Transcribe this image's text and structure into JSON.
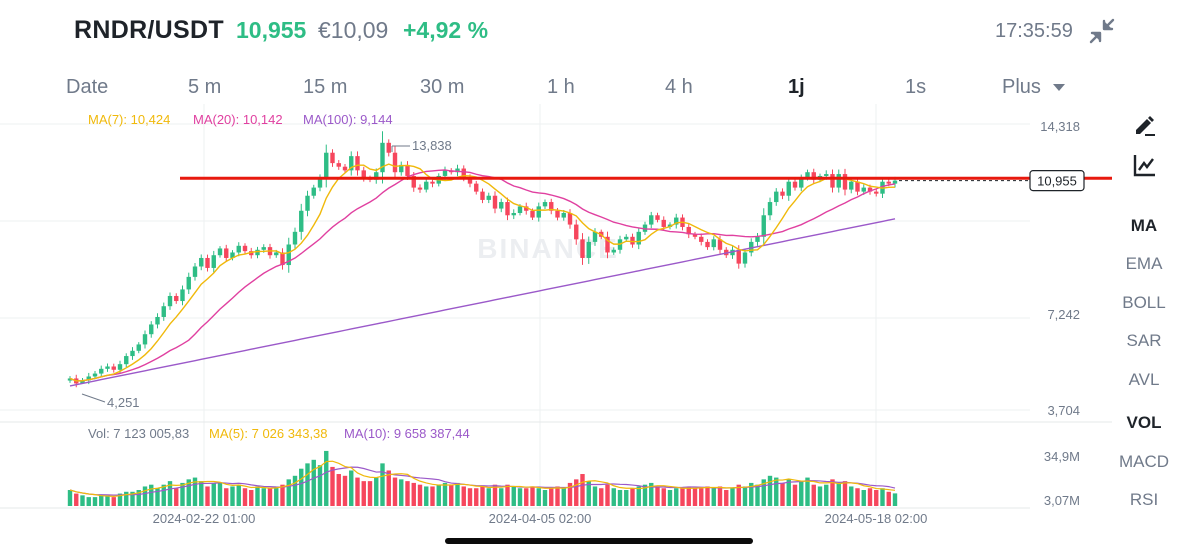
{
  "header": {
    "pair": "RNDR/USDT",
    "price": "10,955",
    "fiat_price": "€10,09",
    "change": "+4,92 %",
    "time": "17:35:59",
    "collapse_icon": "collapse-arrows-icon"
  },
  "timeframes": [
    {
      "label": "Date",
      "active": false
    },
    {
      "label": "5 m",
      "active": false
    },
    {
      "label": "15 m",
      "active": false
    },
    {
      "label": "30 m",
      "active": false
    },
    {
      "label": "1 h",
      "active": false
    },
    {
      "label": "4 h",
      "active": false
    },
    {
      "label": "1j",
      "active": true
    },
    {
      "label": "1s",
      "active": false
    },
    {
      "label": "Plus",
      "active": false
    }
  ],
  "indicators_main": [
    "MA",
    "EMA",
    "BOLL",
    "SAR",
    "AVL"
  ],
  "indicators_sub": [
    "VOL",
    "MACD",
    "RSI"
  ],
  "active_main": "MA",
  "active_sub": "VOL",
  "tools": [
    "draw-tool-icon",
    "chart-style-icon"
  ],
  "colors": {
    "up": "#2ebd85",
    "down": "#f6465d",
    "ma7": "#f0b90b",
    "ma20": "#e040a0",
    "ma100": "#9b59c9",
    "level": "#e8190e",
    "text": "#707a8a",
    "grid": "#eef0f2"
  },
  "chart_data": {
    "type": "candlestick",
    "symbol": "RNDR/USDT",
    "interval": "1j",
    "legend": {
      "ma7": "MA(7): 10,424",
      "ma20": "MA(20): 10,142",
      "ma100": "MA(100): 9,144"
    },
    "price_axis": [
      "14,318",
      "7,242",
      "3,704"
    ],
    "current_price_label": "10,955",
    "current_price": 10.955,
    "high_label": "13,838",
    "low_label": "4,251",
    "resistance_level": 11.08,
    "x_labels": [
      "2024-02-22 01:00",
      "2024-04-05 02:00",
      "2024-05-18 02:00"
    ],
    "volume_legend": {
      "vol": "Vol: 7 123 005,83",
      "ma5": "MA(5): 7 026 343,38",
      "ma10": "MA(10): 9 658 387,44"
    },
    "volume_axis": [
      "34,9M",
      "3,07M"
    ],
    "close": [
      4.3,
      4.2,
      4.26,
      4.34,
      4.4,
      4.5,
      4.55,
      4.48,
      4.6,
      4.78,
      4.9,
      5.05,
      5.3,
      5.55,
      5.75,
      6.05,
      6.35,
      6.2,
      6.55,
      6.95,
      7.3,
      7.6,
      7.25,
      7.7,
      7.95,
      7.6,
      7.8,
      8.05,
      7.85,
      7.7,
      7.9,
      8.0,
      7.7,
      7.8,
      7.35,
      8.1,
      8.6,
      9.5,
      10.2,
      10.6,
      11.1,
      12.5,
      11.9,
      11.7,
      11.5,
      12.3,
      11.5,
      11.1,
      11.0,
      11.4,
      13.1,
      12.5,
      11.4,
      11.8,
      11.2,
      10.6,
      10.5,
      10.9,
      10.8,
      11.2,
      11.5,
      11.4,
      11.6,
      11.1,
      10.8,
      10.4,
      10.0,
      10.2,
      9.6,
      9.9,
      9.3,
      9.4,
      9.7,
      9.5,
      9.2,
      9.7,
      9.9,
      9.5,
      9.2,
      9.4,
      8.9,
      8.3,
      7.6,
      8.2,
      8.6,
      8.4,
      7.8,
      7.9,
      8.3,
      8.4,
      8.1,
      8.6,
      8.9,
      9.3,
      9.1,
      8.8,
      8.9,
      9.2,
      8.8,
      8.5,
      8.4,
      8.2,
      8.0,
      8.3,
      7.9,
      7.7,
      7.9,
      7.4,
      7.8,
      8.2,
      8.4,
      9.3,
      9.9,
      10.4,
      10.2,
      10.9,
      10.6,
      11.1,
      11.4,
      11.0,
      11.2,
      11.3,
      10.6,
      11.3,
      10.5,
      10.9,
      10.4,
      10.6,
      10.4,
      10.3,
      10.9,
      10.8,
      10.955
    ],
    "volume_millions": [
      9,
      7,
      6,
      5,
      5,
      6,
      6,
      5,
      7,
      8,
      8,
      9,
      11,
      12,
      10,
      12,
      14,
      10,
      13,
      15,
      16,
      14,
      11,
      13,
      13,
      10,
      11,
      12,
      10,
      9,
      11,
      10,
      10,
      11,
      12,
      15,
      17,
      21,
      24,
      26,
      23,
      31,
      22,
      18,
      17,
      20,
      16,
      14,
      14,
      16,
      24,
      20,
      16,
      15,
      14,
      13,
      12,
      11,
      11,
      12,
      13,
      12,
      13,
      11,
      10,
      10,
      11,
      10,
      12,
      10,
      12,
      11,
      10,
      10,
      11,
      10,
      9,
      10,
      11,
      10,
      13,
      15,
      18,
      14,
      11,
      10,
      12,
      10,
      9,
      9,
      10,
      11,
      12,
      13,
      11,
      10,
      9,
      10,
      10,
      11,
      10,
      10,
      11,
      10,
      11,
      9,
      10,
      12,
      11,
      13,
      12,
      15,
      17,
      16,
      13,
      15,
      12,
      14,
      16,
      12,
      11,
      12,
      15,
      13,
      14,
      11,
      10,
      9,
      10,
      9,
      10,
      8,
      7.1
    ]
  }
}
